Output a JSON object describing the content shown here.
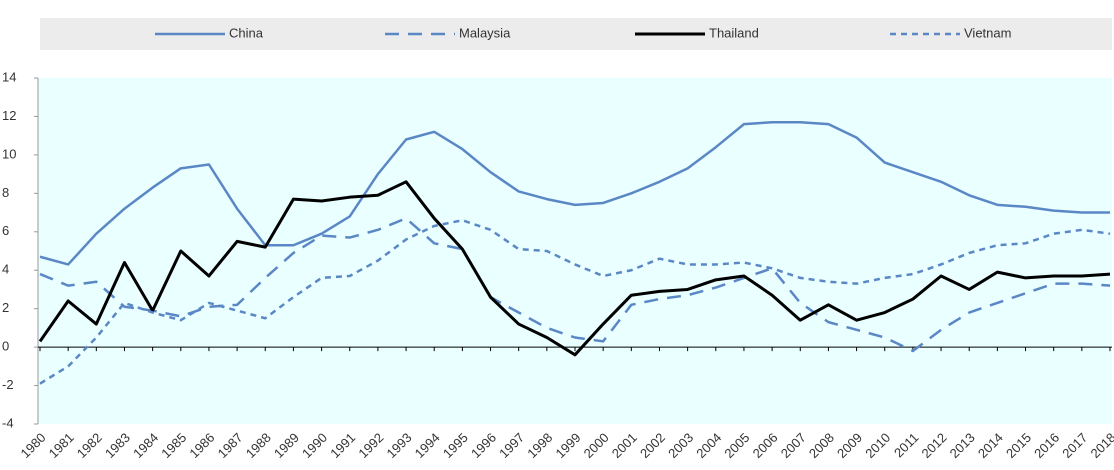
{
  "chart_data": {
    "type": "line",
    "categories": [
      "1980",
      "1981",
      "1982",
      "1983",
      "1984",
      "1985",
      "1986",
      "1987",
      "1988",
      "1989",
      "1990",
      "1991",
      "1992",
      "1993",
      "1994",
      "1995",
      "1996",
      "1997",
      "1998",
      "1999",
      "2000",
      "2001",
      "2002",
      "2003",
      "2004",
      "2005",
      "2006",
      "2007",
      "2008",
      "2009",
      "2010",
      "2011",
      "2012",
      "2013",
      "2014",
      "2015",
      "2016",
      "2017",
      "2018"
    ],
    "series": [
      {
        "name": "China",
        "color": "#5a87c5",
        "dash": "solid",
        "width": 2.5,
        "values": [
          4.7,
          4.3,
          5.9,
          7.2,
          8.3,
          9.3,
          9.5,
          7.2,
          5.3,
          5.3,
          5.9,
          6.8,
          9.0,
          10.8,
          11.2,
          10.3,
          9.1,
          8.1,
          7.7,
          7.4,
          7.5,
          8.0,
          8.6,
          9.3,
          10.4,
          11.6,
          11.7,
          11.7,
          11.6,
          10.9,
          9.6,
          9.1,
          8.6,
          7.9,
          7.4,
          7.3,
          7.1,
          7.0,
          7.0
        ]
      },
      {
        "name": "Malaysia",
        "color": "#5a87c5",
        "dash": "long",
        "width": 2.5,
        "values": [
          3.8,
          3.2,
          3.4,
          2.1,
          1.9,
          1.6,
          2.1,
          2.2,
          3.6,
          4.9,
          5.8,
          5.7,
          6.1,
          6.7,
          5.4,
          5.1,
          2.6,
          1.8,
          1.0,
          0.5,
          0.3,
          2.2,
          2.5,
          2.7,
          3.1,
          3.6,
          4.1,
          2.3,
          1.3,
          0.9,
          0.5,
          -0.2,
          0.9,
          1.8,
          2.3,
          2.8,
          3.3,
          3.3,
          3.2
        ]
      },
      {
        "name": "Thailand",
        "color": "#000000",
        "dash": "solid",
        "width": 3,
        "values": [
          0.3,
          2.4,
          1.2,
          4.4,
          1.9,
          5.0,
          3.7,
          5.5,
          5.2,
          7.7,
          7.6,
          7.8,
          7.9,
          8.6,
          6.7,
          5.1,
          2.6,
          1.2,
          0.5,
          -0.4,
          1.2,
          2.7,
          2.9,
          3.0,
          3.5,
          3.7,
          2.7,
          1.4,
          2.2,
          1.4,
          1.8,
          2.5,
          3.7,
          3.0,
          3.9,
          3.6,
          3.7,
          3.7,
          3.8
        ]
      },
      {
        "name": "Vietnam",
        "color": "#5a87c5",
        "dash": "short",
        "width": 2.5,
        "values": [
          -1.9,
          -1.0,
          0.5,
          2.3,
          1.8,
          1.4,
          2.3,
          1.9,
          1.5,
          2.6,
          3.6,
          3.7,
          4.5,
          5.6,
          6.3,
          6.6,
          6.1,
          5.1,
          5.0,
          4.3,
          3.7,
          4.0,
          4.6,
          4.3,
          4.3,
          4.4,
          4.1,
          3.6,
          3.4,
          3.3,
          3.6,
          3.8,
          4.3,
          4.9,
          5.3,
          5.4,
          5.9,
          6.1,
          5.9
        ]
      }
    ],
    "ylim": [
      -4,
      14
    ],
    "yticks": [
      -4,
      -2,
      0,
      2,
      4,
      6,
      8,
      10,
      12,
      14
    ]
  }
}
